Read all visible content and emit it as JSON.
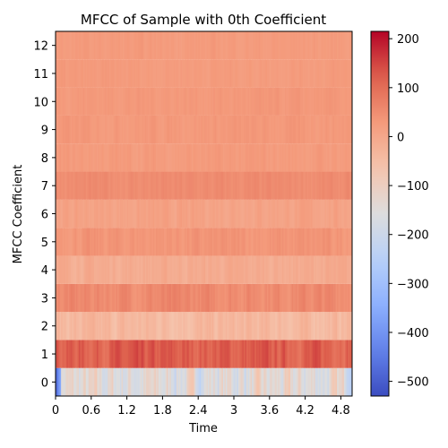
{
  "chart_data": {
    "type": "heatmap",
    "title": "MFCC of Sample with 0th Coefficient",
    "xlabel": "Time",
    "ylabel": "MFCC Coefficient",
    "xlim": [
      0,
      4.99
    ],
    "ylim": [
      -0.5,
      12.5
    ],
    "x_ticks": [
      "0",
      "0.6",
      "1.2",
      "1.8",
      "2.4",
      "3",
      "3.6",
      "4.2",
      "4.8"
    ],
    "x_tick_values": [
      0,
      0.6,
      1.2,
      1.8,
      2.4,
      3.0,
      3.6,
      4.2,
      4.8
    ],
    "y_ticks": [
      "0",
      "1",
      "2",
      "3",
      "4",
      "5",
      "6",
      "7",
      "8",
      "9",
      "10",
      "11",
      "12"
    ],
    "y_tick_values": [
      0,
      1,
      2,
      3,
      4,
      5,
      6,
      7,
      8,
      9,
      10,
      11,
      12
    ],
    "colormap": "coolwarm",
    "colorbar": {
      "min": -530,
      "max": 215,
      "ticks": [
        "200",
        "100",
        "0",
        "−100",
        "−200",
        "−300",
        "−400",
        "−500"
      ],
      "tick_values": [
        200,
        100,
        0,
        -100,
        -200,
        -300,
        -400,
        -500
      ]
    },
    "coefficient_levels": [
      {
        "coefficient": 0,
        "value": -150,
        "onset_value": -480
      },
      {
        "coefficient": 1,
        "value": 120
      },
      {
        "coefficient": 2,
        "value": -40
      },
      {
        "coefficient": 3,
        "value": 55
      },
      {
        "coefficient": 4,
        "value": -10
      },
      {
        "coefficient": 5,
        "value": 35
      },
      {
        "coefficient": 6,
        "value": 10
      },
      {
        "coefficient": 7,
        "value": 50
      },
      {
        "coefficient": 8,
        "value": 25
      },
      {
        "coefficient": 9,
        "value": 30
      },
      {
        "coefficient": 10,
        "value": 30
      },
      {
        "coefficient": 11,
        "value": 25
      },
      {
        "coefficient": 12,
        "value": 25
      }
    ],
    "grid": false,
    "colorbar_position": "right"
  }
}
